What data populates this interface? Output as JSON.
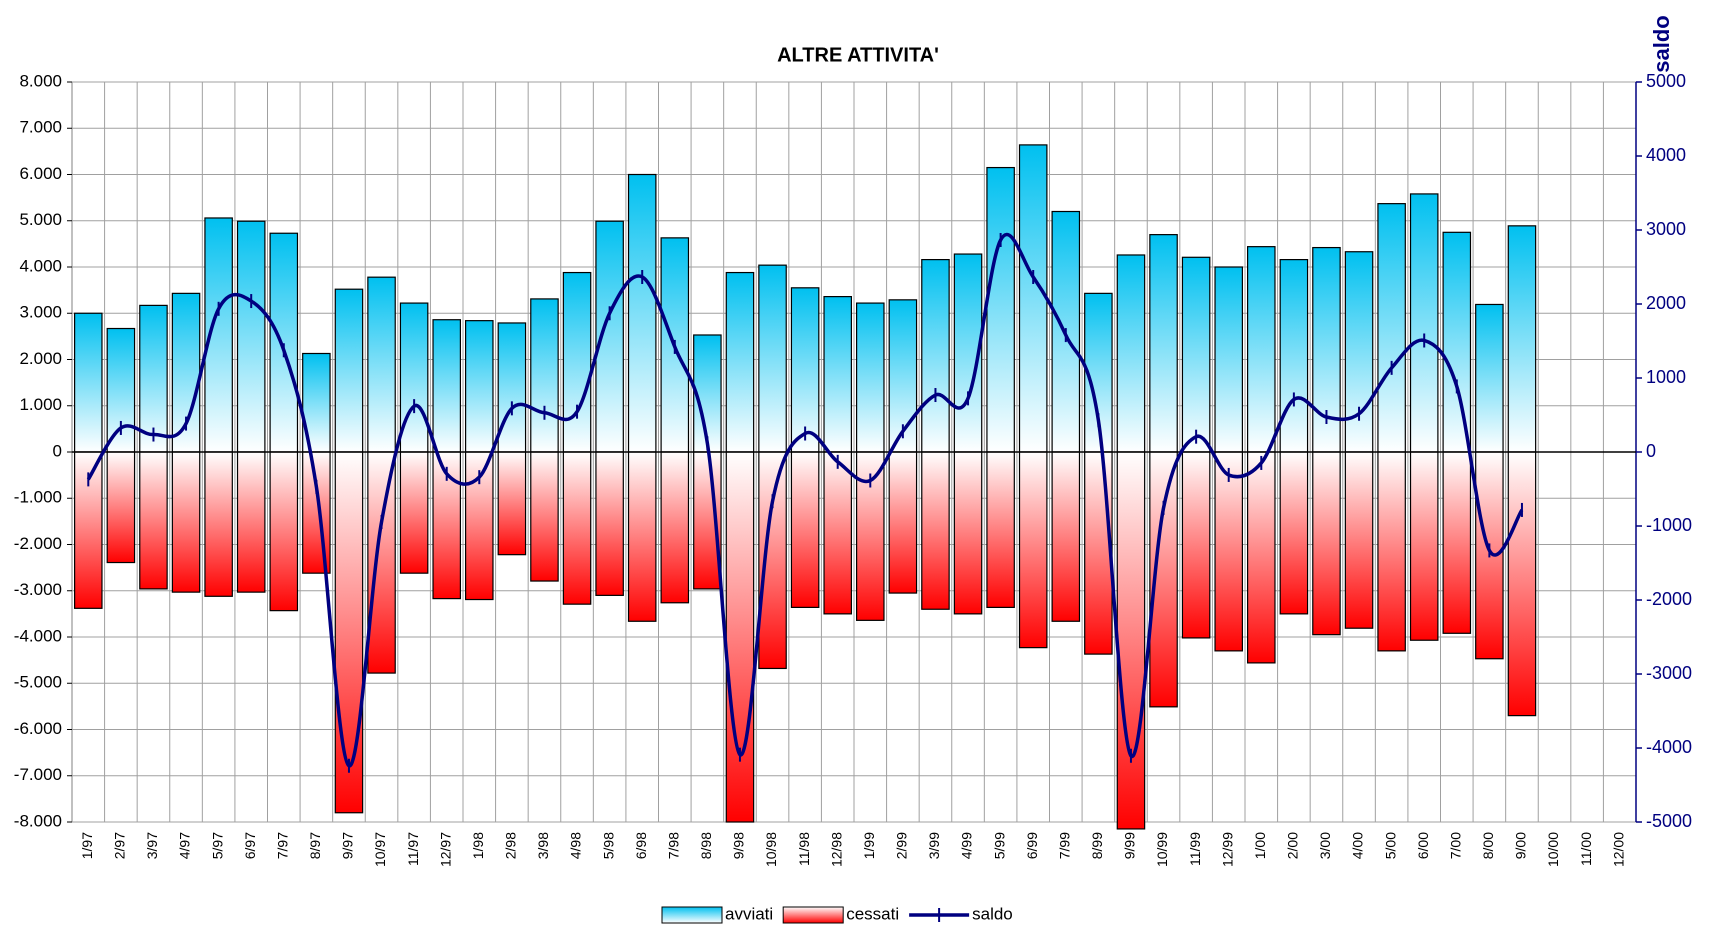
{
  "chart_data": {
    "type": "bar-line",
    "title": "ALTRE ATTIVITA'",
    "y2label": "saldo",
    "categories": [
      "1/97",
      "2/97",
      "3/97",
      "4/97",
      "5/97",
      "6/97",
      "7/97",
      "8/97",
      "9/97",
      "10/97",
      "11/97",
      "12/97",
      "1/98",
      "2/98",
      "3/98",
      "4/98",
      "5/98",
      "6/98",
      "7/98",
      "8/98",
      "9/98",
      "10/98",
      "11/98",
      "12/98",
      "1/99",
      "2/99",
      "3/99",
      "4/99",
      "5/99",
      "6/99",
      "7/99",
      "8/99",
      "9/99",
      "10/99",
      "11/99",
      "12/99",
      "1/00",
      "2/00",
      "3/00",
      "4/00",
      "5/00",
      "6/00",
      "7/00",
      "8/00",
      "9/00",
      "10/00",
      "11/00",
      "12/00"
    ],
    "series": [
      {
        "name": "avviati",
        "type": "bar",
        "color": "#00c0f0",
        "values": [
          3000,
          2670,
          3170,
          3430,
          5060,
          4990,
          4730,
          2130,
          3520,
          3780,
          3220,
          2860,
          2840,
          2790,
          3310,
          3880,
          4990,
          6000,
          4630,
          2530,
          3880,
          4040,
          3550,
          3360,
          3220,
          3290,
          4160,
          4280,
          6150,
          6640,
          5200,
          3430,
          4260,
          4700,
          4210,
          4000,
          4440,
          4160,
          4420,
          4330,
          5370,
          5580,
          4750,
          3190,
          4890,
          null,
          null,
          null
        ]
      },
      {
        "name": "cessati",
        "type": "bar",
        "color": "#ff0000",
        "values": [
          -3380,
          -2390,
          -2960,
          -3030,
          -3120,
          -3030,
          -3430,
          -2620,
          -7800,
          -4780,
          -2620,
          -3170,
          -3190,
          -2220,
          -2790,
          -3290,
          -3100,
          -3660,
          -3260,
          -2960,
          -8000,
          -4680,
          -3360,
          -3500,
          -3640,
          -3050,
          -3400,
          -3500,
          -3360,
          -4230,
          -3660,
          -4370,
          -8150,
          -5510,
          -4020,
          -4300,
          -4560,
          -3500,
          -3950,
          -3810,
          -4300,
          -4070,
          -3920,
          -4470,
          -5700,
          null,
          null,
          null
        ]
      },
      {
        "name": "saldo",
        "type": "line",
        "axis": "y2",
        "color": "#000080",
        "values": [
          -370,
          325,
          236,
          384,
          1935,
          2040,
          1375,
          -470,
          -4240,
          -945,
          620,
          -295,
          -340,
          590,
          530,
          545,
          1875,
          2365,
          1420,
          118,
          -4090,
          -665,
          250,
          -133,
          -385,
          280,
          770,
          725,
          2865,
          2365,
          1580,
          430,
          -4105,
          -755,
          207,
          -310,
          -148,
          710,
          473,
          517,
          1137,
          1507,
          886,
          -1330,
          -783,
          null,
          null,
          null
        ]
      }
    ],
    "ylim": [
      -8000,
      8000
    ],
    "yticks": [
      {
        "value": -8000,
        "label": "-8.000"
      },
      {
        "value": -7000,
        "label": "-7.000"
      },
      {
        "value": -6000,
        "label": "-6.000"
      },
      {
        "value": -5000,
        "label": "-5.000"
      },
      {
        "value": -4000,
        "label": "-4.000"
      },
      {
        "value": -3000,
        "label": "-3.000"
      },
      {
        "value": -2000,
        "label": "-2.000"
      },
      {
        "value": -1000,
        "label": "-1.000"
      },
      0,
      {
        "value": 1000,
        "label": "1.000"
      },
      {
        "value": 2000,
        "label": "2.000"
      },
      {
        "value": 3000,
        "label": "3.000"
      },
      {
        "value": 4000,
        "label": "4.000"
      },
      {
        "value": 5000,
        "label": "5.000"
      },
      {
        "value": 6000,
        "label": "6.000"
      },
      {
        "value": 7000,
        "label": "7.000"
      },
      {
        "value": 8000,
        "label": "8.000"
      }
    ],
    "y2lim": [
      -5000,
      5000
    ],
    "y2ticks": [
      -5000,
      -4000,
      -3000,
      -2000,
      -1000,
      0,
      1000,
      2000,
      3000,
      4000,
      5000
    ],
    "grid": true
  }
}
